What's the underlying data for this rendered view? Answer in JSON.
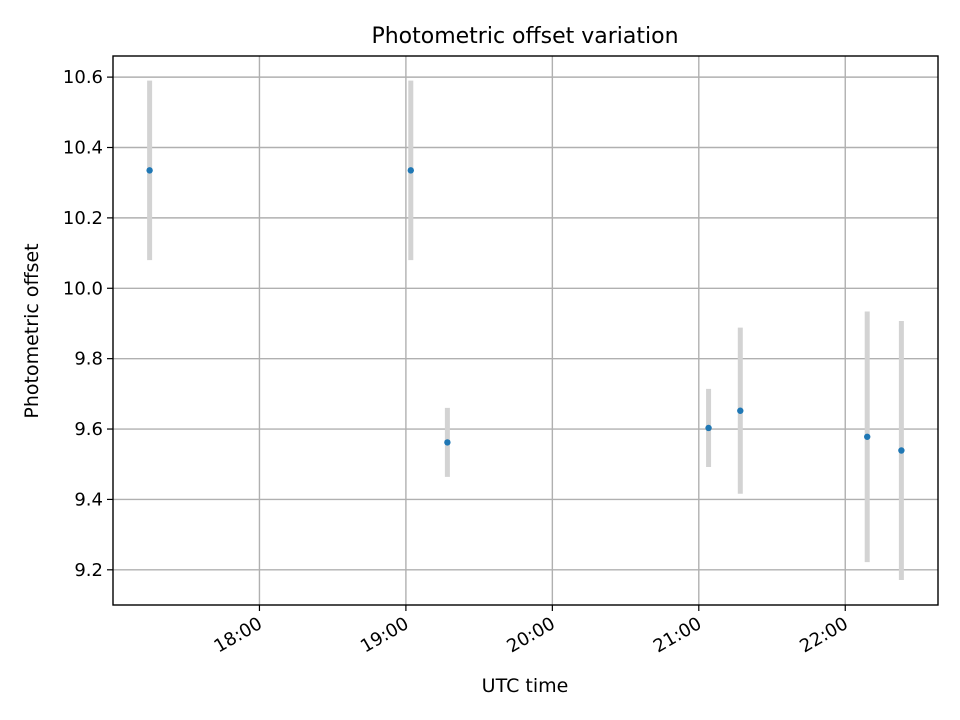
{
  "chart_data": {
    "type": "scatter",
    "title": "Photometric offset variation",
    "xlabel": "UTC time",
    "ylabel": "Photometric offset",
    "grid": true,
    "xlim": [
      "17:00",
      "22:38"
    ],
    "ylim": [
      9.1,
      10.66
    ],
    "xticks": [
      "18:00",
      "19:00",
      "20:00",
      "21:00",
      "22:00"
    ],
    "yticks": [
      9.2,
      9.4,
      9.6,
      9.8,
      10.0,
      10.2,
      10.4,
      10.6
    ],
    "points": [
      {
        "x": "17:15",
        "y": 10.335,
        "err_low": 10.08,
        "err_high": 10.59
      },
      {
        "x": "19:02",
        "y": 10.335,
        "err_low": 10.08,
        "err_high": 10.59
      },
      {
        "x": "19:17",
        "y": 9.562,
        "err_low": 9.464,
        "err_high": 9.66
      },
      {
        "x": "21:04",
        "y": 9.603,
        "err_low": 9.492,
        "err_high": 9.714
      },
      {
        "x": "21:17",
        "y": 9.652,
        "err_low": 9.416,
        "err_high": 9.888
      },
      {
        "x": "22:09",
        "y": 9.578,
        "err_low": 9.222,
        "err_high": 9.934
      },
      {
        "x": "22:23",
        "y": 9.539,
        "err_low": 9.171,
        "err_high": 9.907
      }
    ],
    "colors": {
      "marker": "#1f77b4",
      "errorbar": "#d3d3d3",
      "grid": "#b0b0b0"
    }
  }
}
